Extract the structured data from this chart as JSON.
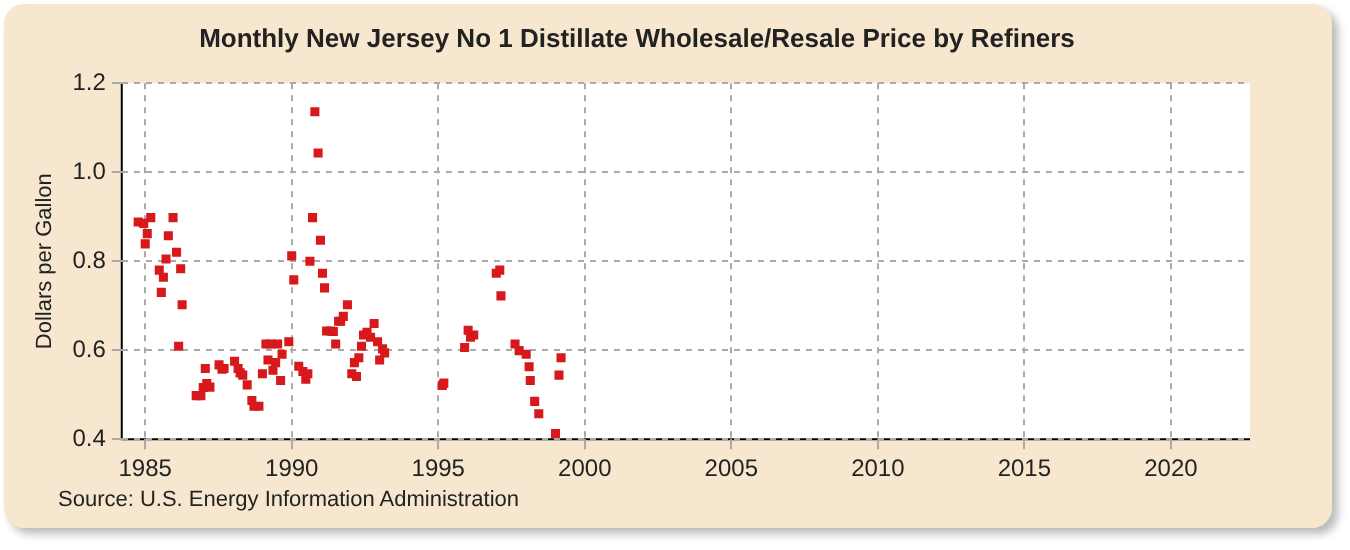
{
  "chart_data": {
    "type": "scatter",
    "title": "Monthly New Jersey No 1 Distillate Wholesale/Resale Price by Refiners",
    "ylabel": "Dollars per Gallon",
    "annotations": [
      "Source: U.S. Energy Information Administration"
    ],
    "x": [
      1984.76,
      1984.95,
      1985.0,
      1985.07,
      1985.19,
      1985.48,
      1985.55,
      1985.62,
      1985.71,
      1985.79,
      1985.95,
      1986.07,
      1986.14,
      1986.21,
      1986.26,
      1986.74,
      1986.9,
      1986.98,
      1987.05,
      1987.1,
      1987.21,
      1987.52,
      1987.62,
      1987.69,
      1988.05,
      1988.17,
      1988.24,
      1988.33,
      1988.48,
      1988.64,
      1988.71,
      1988.88,
      1989.0,
      1989.12,
      1989.19,
      1989.29,
      1989.36,
      1989.45,
      1989.52,
      1989.62,
      1989.67,
      1989.9,
      1990.0,
      1990.07,
      1990.24,
      1990.38,
      1990.48,
      1990.55,
      1990.62,
      1990.71,
      1990.79,
      1990.9,
      1990.98,
      1991.05,
      1991.12,
      1991.19,
      1991.33,
      1991.42,
      1991.5,
      1991.6,
      1991.67,
      1991.76,
      1991.9,
      1992.05,
      1992.14,
      1992.21,
      1992.29,
      1992.38,
      1992.45,
      1992.57,
      1992.69,
      1992.81,
      1992.93,
      1993.0,
      1993.1,
      1993.17,
      1995.14,
      1995.19,
      1995.9,
      1996.02,
      1996.1,
      1996.21,
      1996.98,
      1997.1,
      1997.14,
      1997.62,
      1997.76,
      1998.0,
      1998.1,
      1998.14,
      1998.29,
      1998.43,
      1999.0,
      1999.12,
      1999.19
    ],
    "values": [
      0.888,
      0.885,
      0.839,
      0.862,
      0.898,
      0.78,
      0.73,
      0.764,
      0.805,
      0.857,
      0.898,
      0.82,
      0.609,
      0.783,
      0.702,
      0.498,
      0.498,
      0.516,
      0.559,
      0.525,
      0.517,
      0.567,
      0.557,
      0.559,
      0.575,
      0.559,
      0.549,
      0.544,
      0.522,
      0.487,
      0.474,
      0.474,
      0.547,
      0.614,
      0.578,
      0.614,
      0.555,
      0.572,
      0.614,
      0.532,
      0.591,
      0.619,
      0.812,
      0.758,
      0.564,
      0.552,
      0.535,
      0.547,
      0.8,
      0.898,
      1.136,
      1.043,
      0.847,
      0.773,
      0.74,
      0.643,
      0.643,
      0.642,
      0.614,
      0.665,
      0.665,
      0.676,
      0.702,
      0.547,
      0.572,
      0.541,
      0.583,
      0.609,
      0.634,
      0.64,
      0.629,
      0.66,
      0.619,
      0.578,
      0.603,
      0.594,
      0.521,
      0.526,
      0.606,
      0.645,
      0.629,
      0.634,
      0.773,
      0.78,
      0.722,
      0.614,
      0.599,
      0.591,
      0.563,
      0.532,
      0.485,
      0.457,
      0.413,
      0.544,
      0.583
    ],
    "color": "#d7191c",
    "marker": "square",
    "xlim": [
      1984.2,
      2022.7
    ],
    "xticks": [
      1985,
      1990,
      1995,
      2000,
      2005,
      2010,
      2015,
      2020
    ],
    "ylim": [
      0.4,
      1.2
    ],
    "yticks": [
      {
        "value": 0.4,
        "label": "0.4"
      },
      {
        "value": 0.6,
        "label": "0.6"
      },
      {
        "value": 0.8,
        "label": "0.8"
      },
      {
        "value": 1.0,
        "label": "1.0"
      },
      {
        "value": 1.2,
        "label": "1.2"
      }
    ],
    "grid": true,
    "legend": false
  }
}
